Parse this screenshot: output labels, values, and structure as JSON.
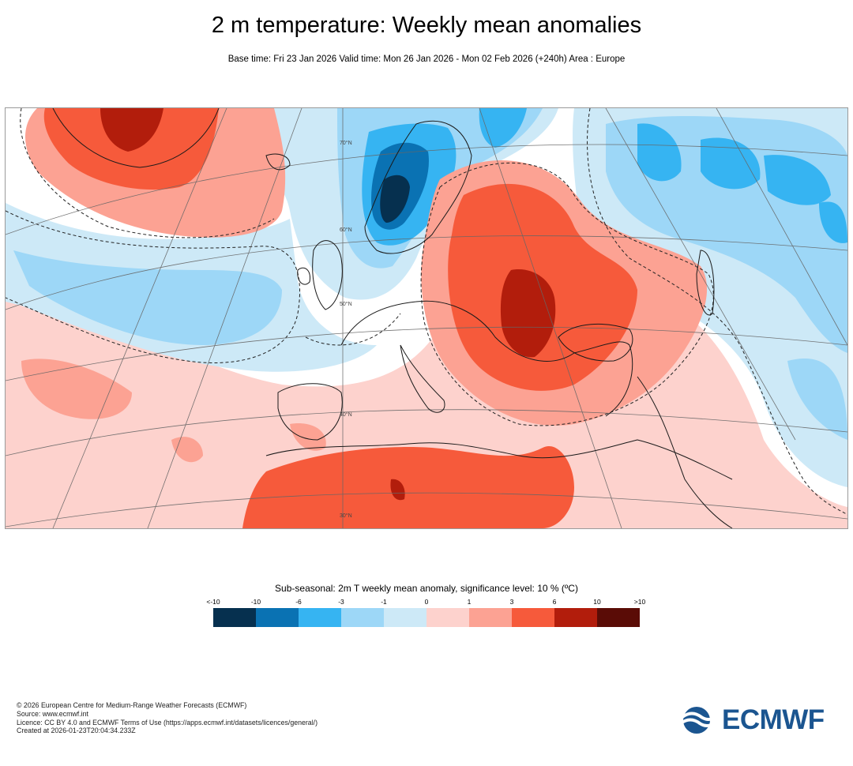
{
  "header": {
    "title": "2 m temperature: Weekly mean anomalies",
    "subtitle": "Base time: Fri 23 Jan 2026 Valid time: Mon 26 Jan 2026 - Mon 02 Feb 2026 (+240h) Area : Europe"
  },
  "map": {
    "region": "Europe",
    "graticule_labels": [
      "70°N",
      "60°N",
      "50°N",
      "40°N",
      "30°N"
    ]
  },
  "legend": {
    "title": "Sub-seasonal: 2m T weekly mean anomaly, significance level: 10 % (ºC)",
    "tick_labels": [
      "<-10",
      "-10",
      "-6",
      "-3",
      "-1",
      "0",
      "1",
      "3",
      "6",
      "10",
      ">10"
    ],
    "colors": [
      "#06304f",
      "#0a72b3",
      "#36b4f2",
      "#9dd7f7",
      "#cde9f7",
      "#fdd2cd",
      "#fca293",
      "#f65a3b",
      "#b21d0c",
      "#5a0c06"
    ]
  },
  "footer": {
    "lines": [
      "© 2026 European Centre for Medium-Range Weather Forecasts (ECMWF)",
      "Source: www.ecmwf.int",
      "Licence: CC BY 4.0 and ECMWF Terms of Use (https://apps.ecmwf.int/datasets/licences/general/)",
      "Created at 2026-01-23T20:04:34.233Z"
    ]
  },
  "logo": {
    "text": "ECMWF"
  }
}
